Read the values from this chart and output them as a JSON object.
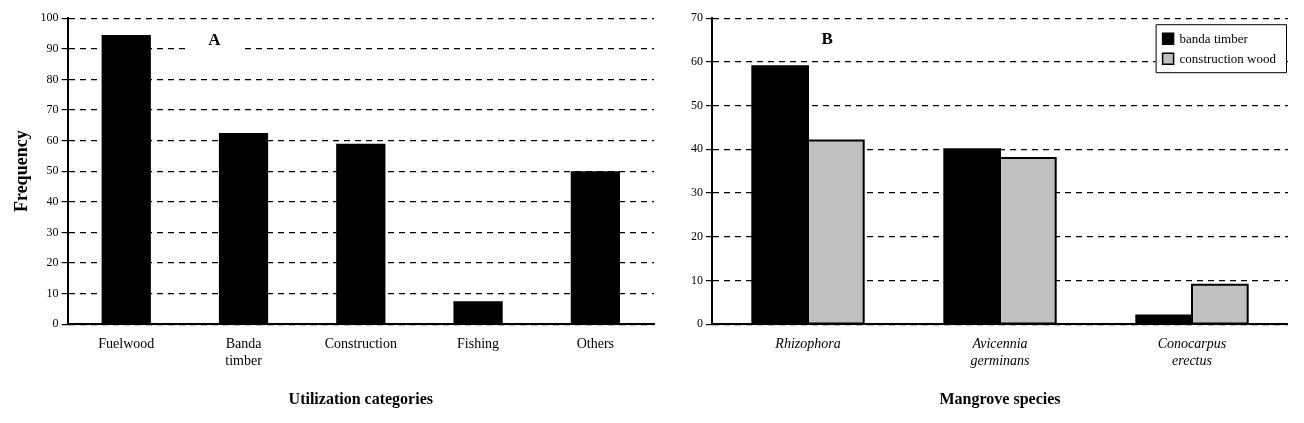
{
  "chart_data": [
    {
      "type": "bar",
      "title": "A",
      "categories": [
        "Fuelwood",
        "Banda timber",
        "Construction",
        "Fishing",
        "Others"
      ],
      "values": [
        94.5,
        62.5,
        59,
        7.5,
        50
      ],
      "color": "#000000",
      "ylim": [
        0,
        100
      ],
      "yticks": [
        0,
        10,
        20,
        30,
        40,
        50,
        60,
        70,
        80,
        90,
        100
      ],
      "ylabel": "Frequency",
      "xlabel": "Utilization categories",
      "grid": "y",
      "legend": false
    },
    {
      "type": "bar",
      "title": "B",
      "categories": [
        "Rhizophora",
        "Avicennia germinans",
        "Conocarpus erectus"
      ],
      "series": [
        {
          "name": "banda timber",
          "color": "#000000",
          "values": [
            59,
            40,
            2
          ]
        },
        {
          "name": "construction wood",
          "color": "#c0c0c0",
          "values": [
            42,
            38,
            9
          ]
        }
      ],
      "ylim": [
        0,
        70
      ],
      "yticks": [
        0,
        10,
        20,
        30,
        40,
        50,
        60,
        70
      ],
      "xlabel": "Mangrove species",
      "grid": "y",
      "legend": "top right"
    }
  ]
}
